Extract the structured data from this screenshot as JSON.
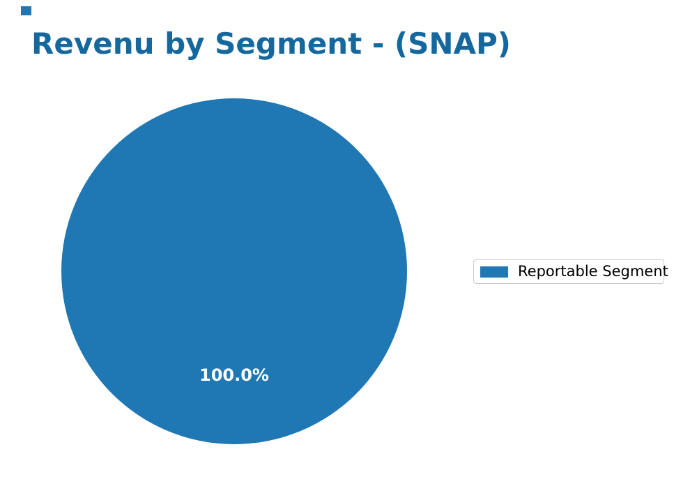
{
  "figure": {
    "background": "#ffffff"
  },
  "marker": {
    "color": "#1f77b4"
  },
  "title": {
    "text": "Revenu by Segment - (SNAP)",
    "color": "#15689e"
  },
  "chart_data": {
    "type": "pie",
    "title": "Revenu by Segment - (SNAP)",
    "categories": [
      "Reportable Segment"
    ],
    "values": [
      100.0
    ],
    "value_unit": "percent",
    "slice_labels": [
      "100.0%"
    ],
    "slice_colors": [
      "#1f77b4"
    ],
    "slice_label_color": "#ffffff",
    "legend_position": "center-right",
    "legend_entries": [
      "Reportable Segment"
    ]
  },
  "pie": {
    "fill": "#1f77b4",
    "pct_label": "100.0%"
  },
  "legend": {
    "border_color": "#cccccc",
    "entries": [
      {
        "label": "Reportable Segment",
        "swatch_color": "#1f77b4"
      }
    ]
  }
}
